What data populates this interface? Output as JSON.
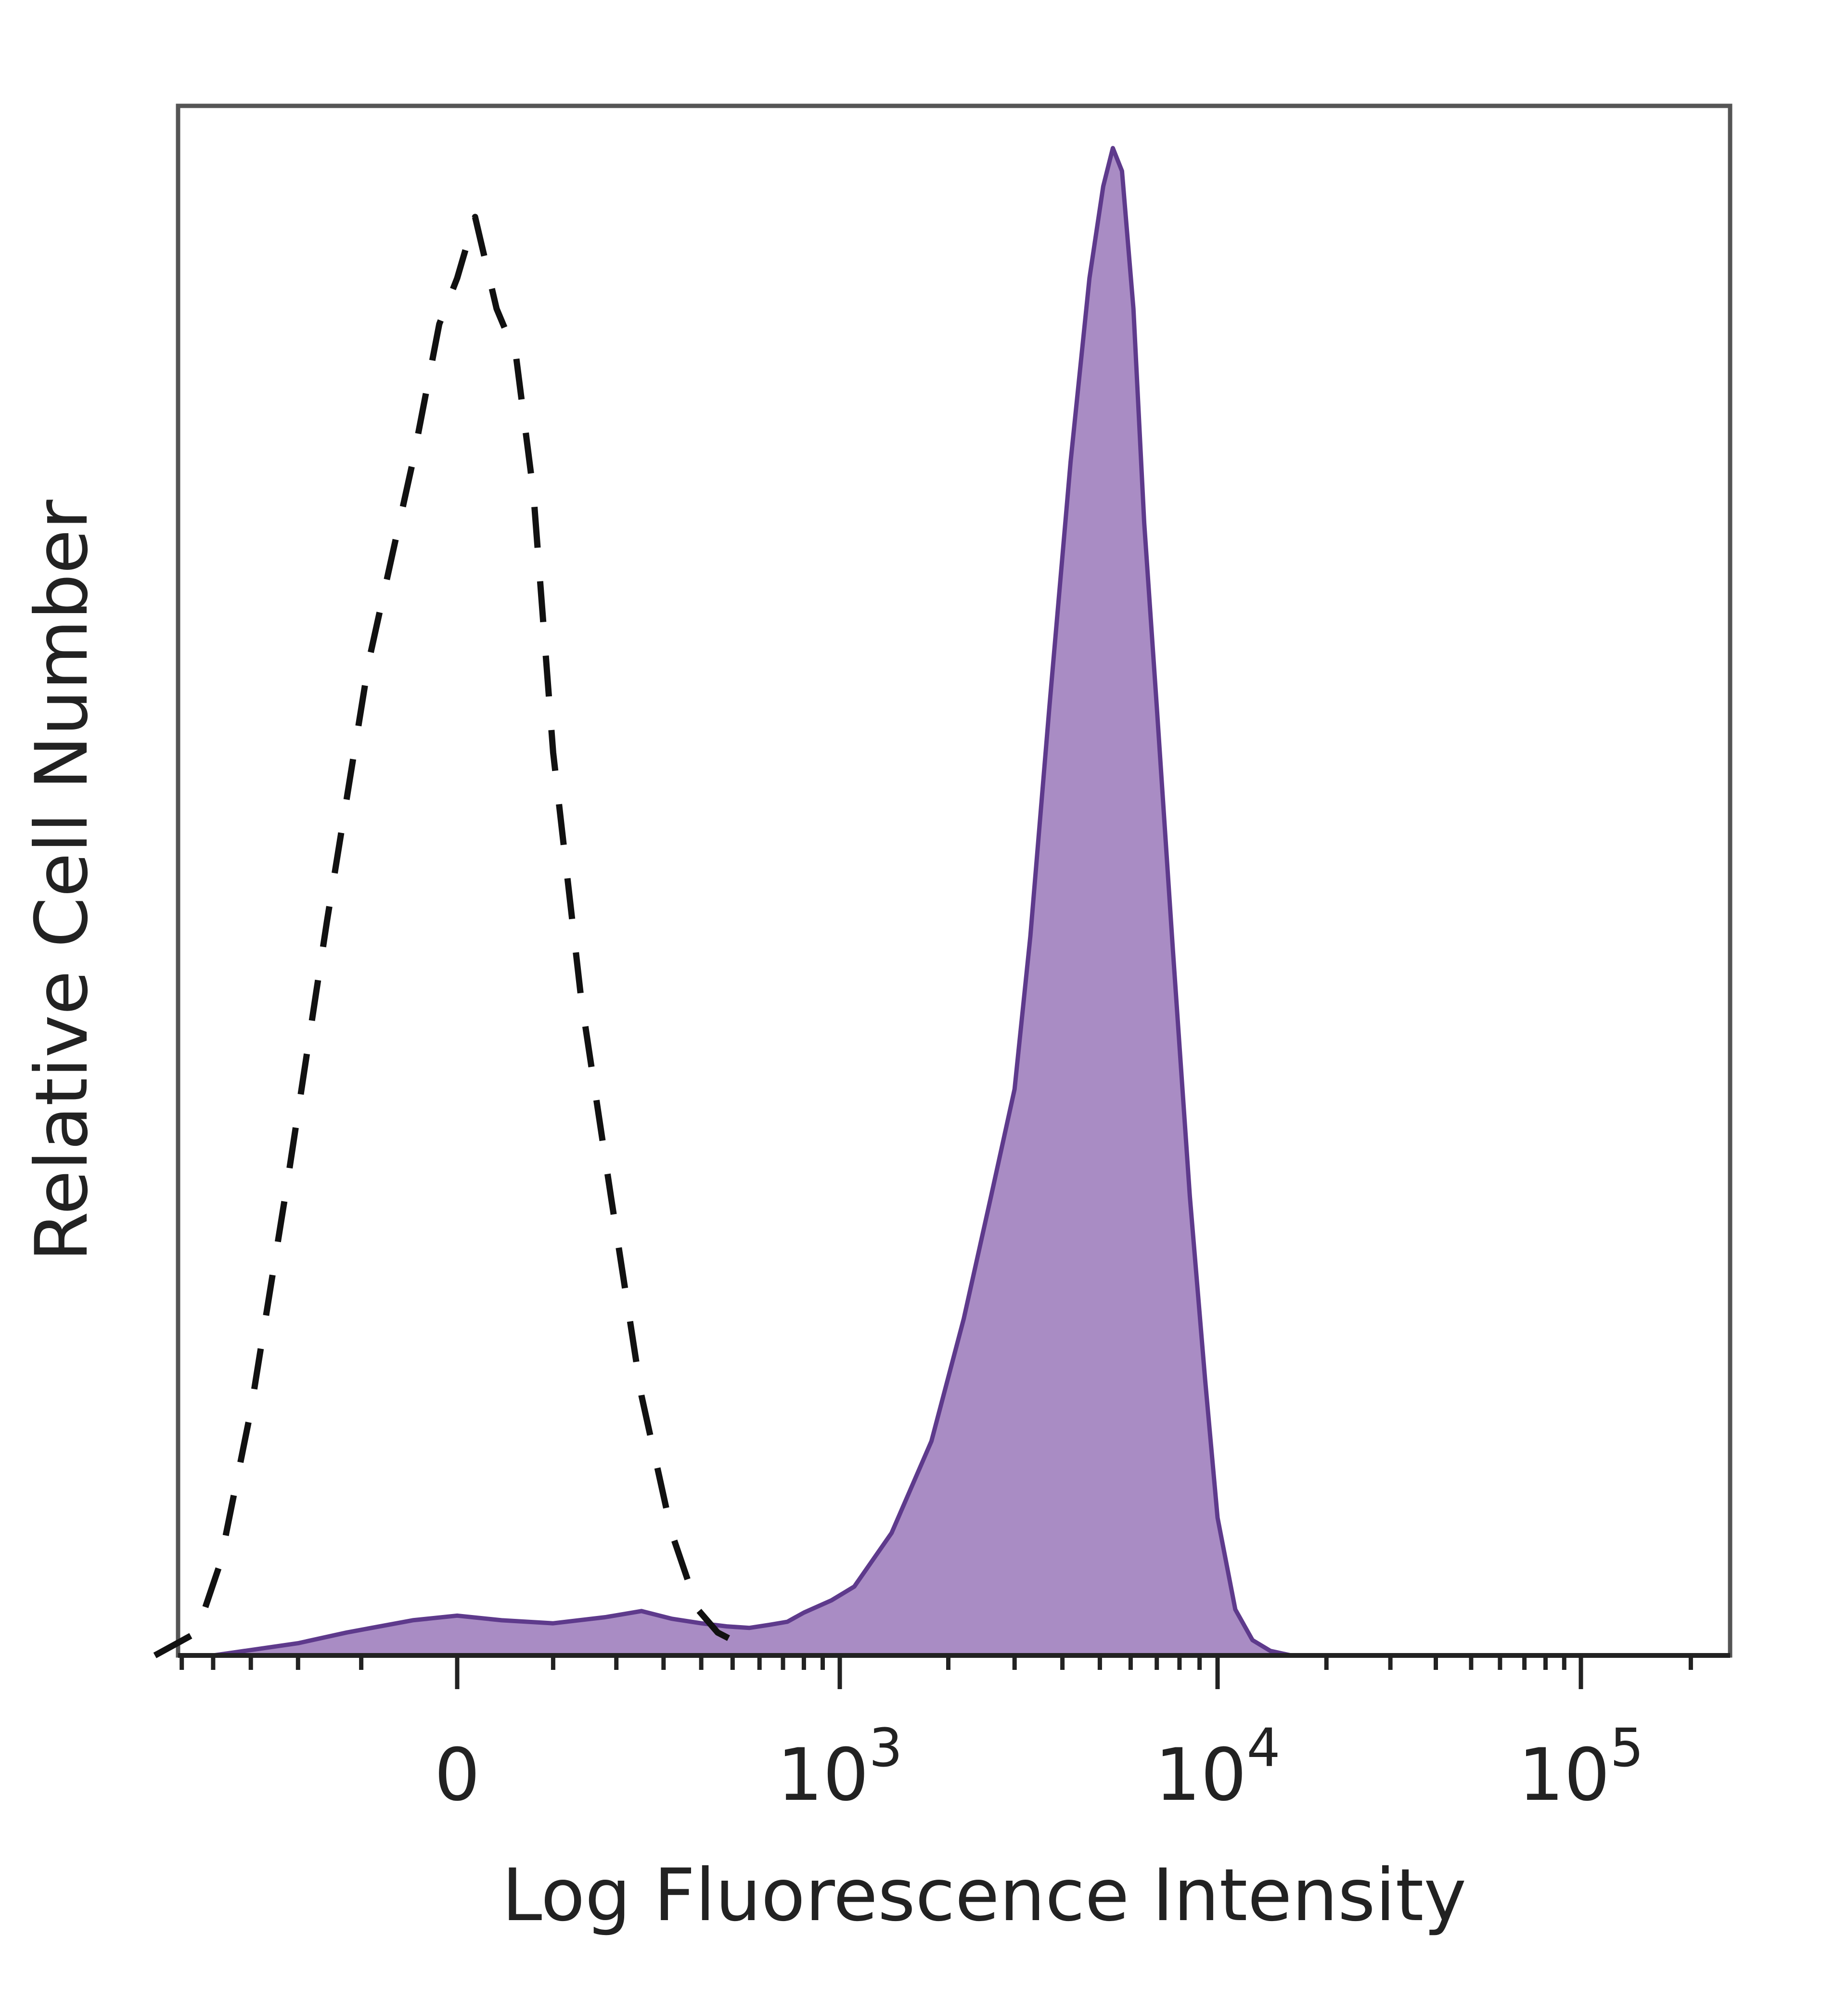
{
  "chart_data": {
    "type": "area",
    "xlabel": "Log Fluorescence Intensity",
    "ylabel": "Relative Cell Number",
    "x_scale": "biexponential",
    "x_ticks": [
      {
        "value": 0,
        "base": "0",
        "exp": ""
      },
      {
        "value": 1000,
        "base": "10",
        "exp": "3"
      },
      {
        "value": 10000,
        "base": "10",
        "exp": "4"
      },
      {
        "value": 100000,
        "base": "10",
        "exp": "5"
      }
    ],
    "y_range": [
      0,
      100
    ],
    "grid": false,
    "legend": "none",
    "series": [
      {
        "style": "dashed",
        "color": "#111111",
        "filled": false,
        "points": [
          [
            -600,
            0
          ],
          [
            -450,
            1.5
          ],
          [
            -380,
            6
          ],
          [
            -300,
            16
          ],
          [
            -220,
            31
          ],
          [
            -150,
            48
          ],
          [
            -90,
            65
          ],
          [
            -40,
            78
          ],
          [
            -15,
            87
          ],
          [
            0,
            90
          ],
          [
            15,
            94
          ],
          [
            35,
            88
          ],
          [
            55,
            85
          ],
          [
            75,
            76
          ],
          [
            100,
            59
          ],
          [
            140,
            43
          ],
          [
            190,
            30
          ],
          [
            250,
            17
          ],
          [
            320,
            8
          ],
          [
            390,
            3
          ],
          [
            450,
            1.5
          ],
          [
            520,
            0.8
          ]
        ]
      },
      {
        "style": "solid",
        "color": "#5e3a8c",
        "fill": "#a98cc4",
        "filled": true,
        "points": [
          [
            -400,
            0
          ],
          [
            -200,
            0.8
          ],
          [
            -120,
            1.5
          ],
          [
            -40,
            2.3
          ],
          [
            0,
            2.6
          ],
          [
            40,
            2.3
          ],
          [
            100,
            2.1
          ],
          [
            180,
            2.5
          ],
          [
            250,
            2.9
          ],
          [
            320,
            2.4
          ],
          [
            400,
            2.1
          ],
          [
            480,
            1.9
          ],
          [
            560,
            1.8
          ],
          [
            640,
            2.0
          ],
          [
            720,
            2.2
          ],
          [
            800,
            2.8
          ],
          [
            950,
            3.6
          ],
          [
            1100,
            4.5
          ],
          [
            1400,
            8
          ],
          [
            1800,
            14
          ],
          [
            2200,
            22
          ],
          [
            2600,
            30
          ],
          [
            3000,
            37
          ],
          [
            3300,
            47
          ],
          [
            3700,
            62
          ],
          [
            4200,
            78
          ],
          [
            4700,
            90
          ],
          [
            5100,
            96
          ],
          [
            5400,
            98.5
          ],
          [
            5700,
            97
          ],
          [
            6100,
            88
          ],
          [
            6500,
            74
          ],
          [
            7000,
            62
          ],
          [
            7700,
            46
          ],
          [
            8500,
            30
          ],
          [
            9300,
            18
          ],
          [
            10000,
            9
          ],
          [
            11200,
            3
          ],
          [
            12500,
            1
          ],
          [
            14000,
            0.3
          ],
          [
            16000,
            0
          ]
        ]
      }
    ]
  }
}
